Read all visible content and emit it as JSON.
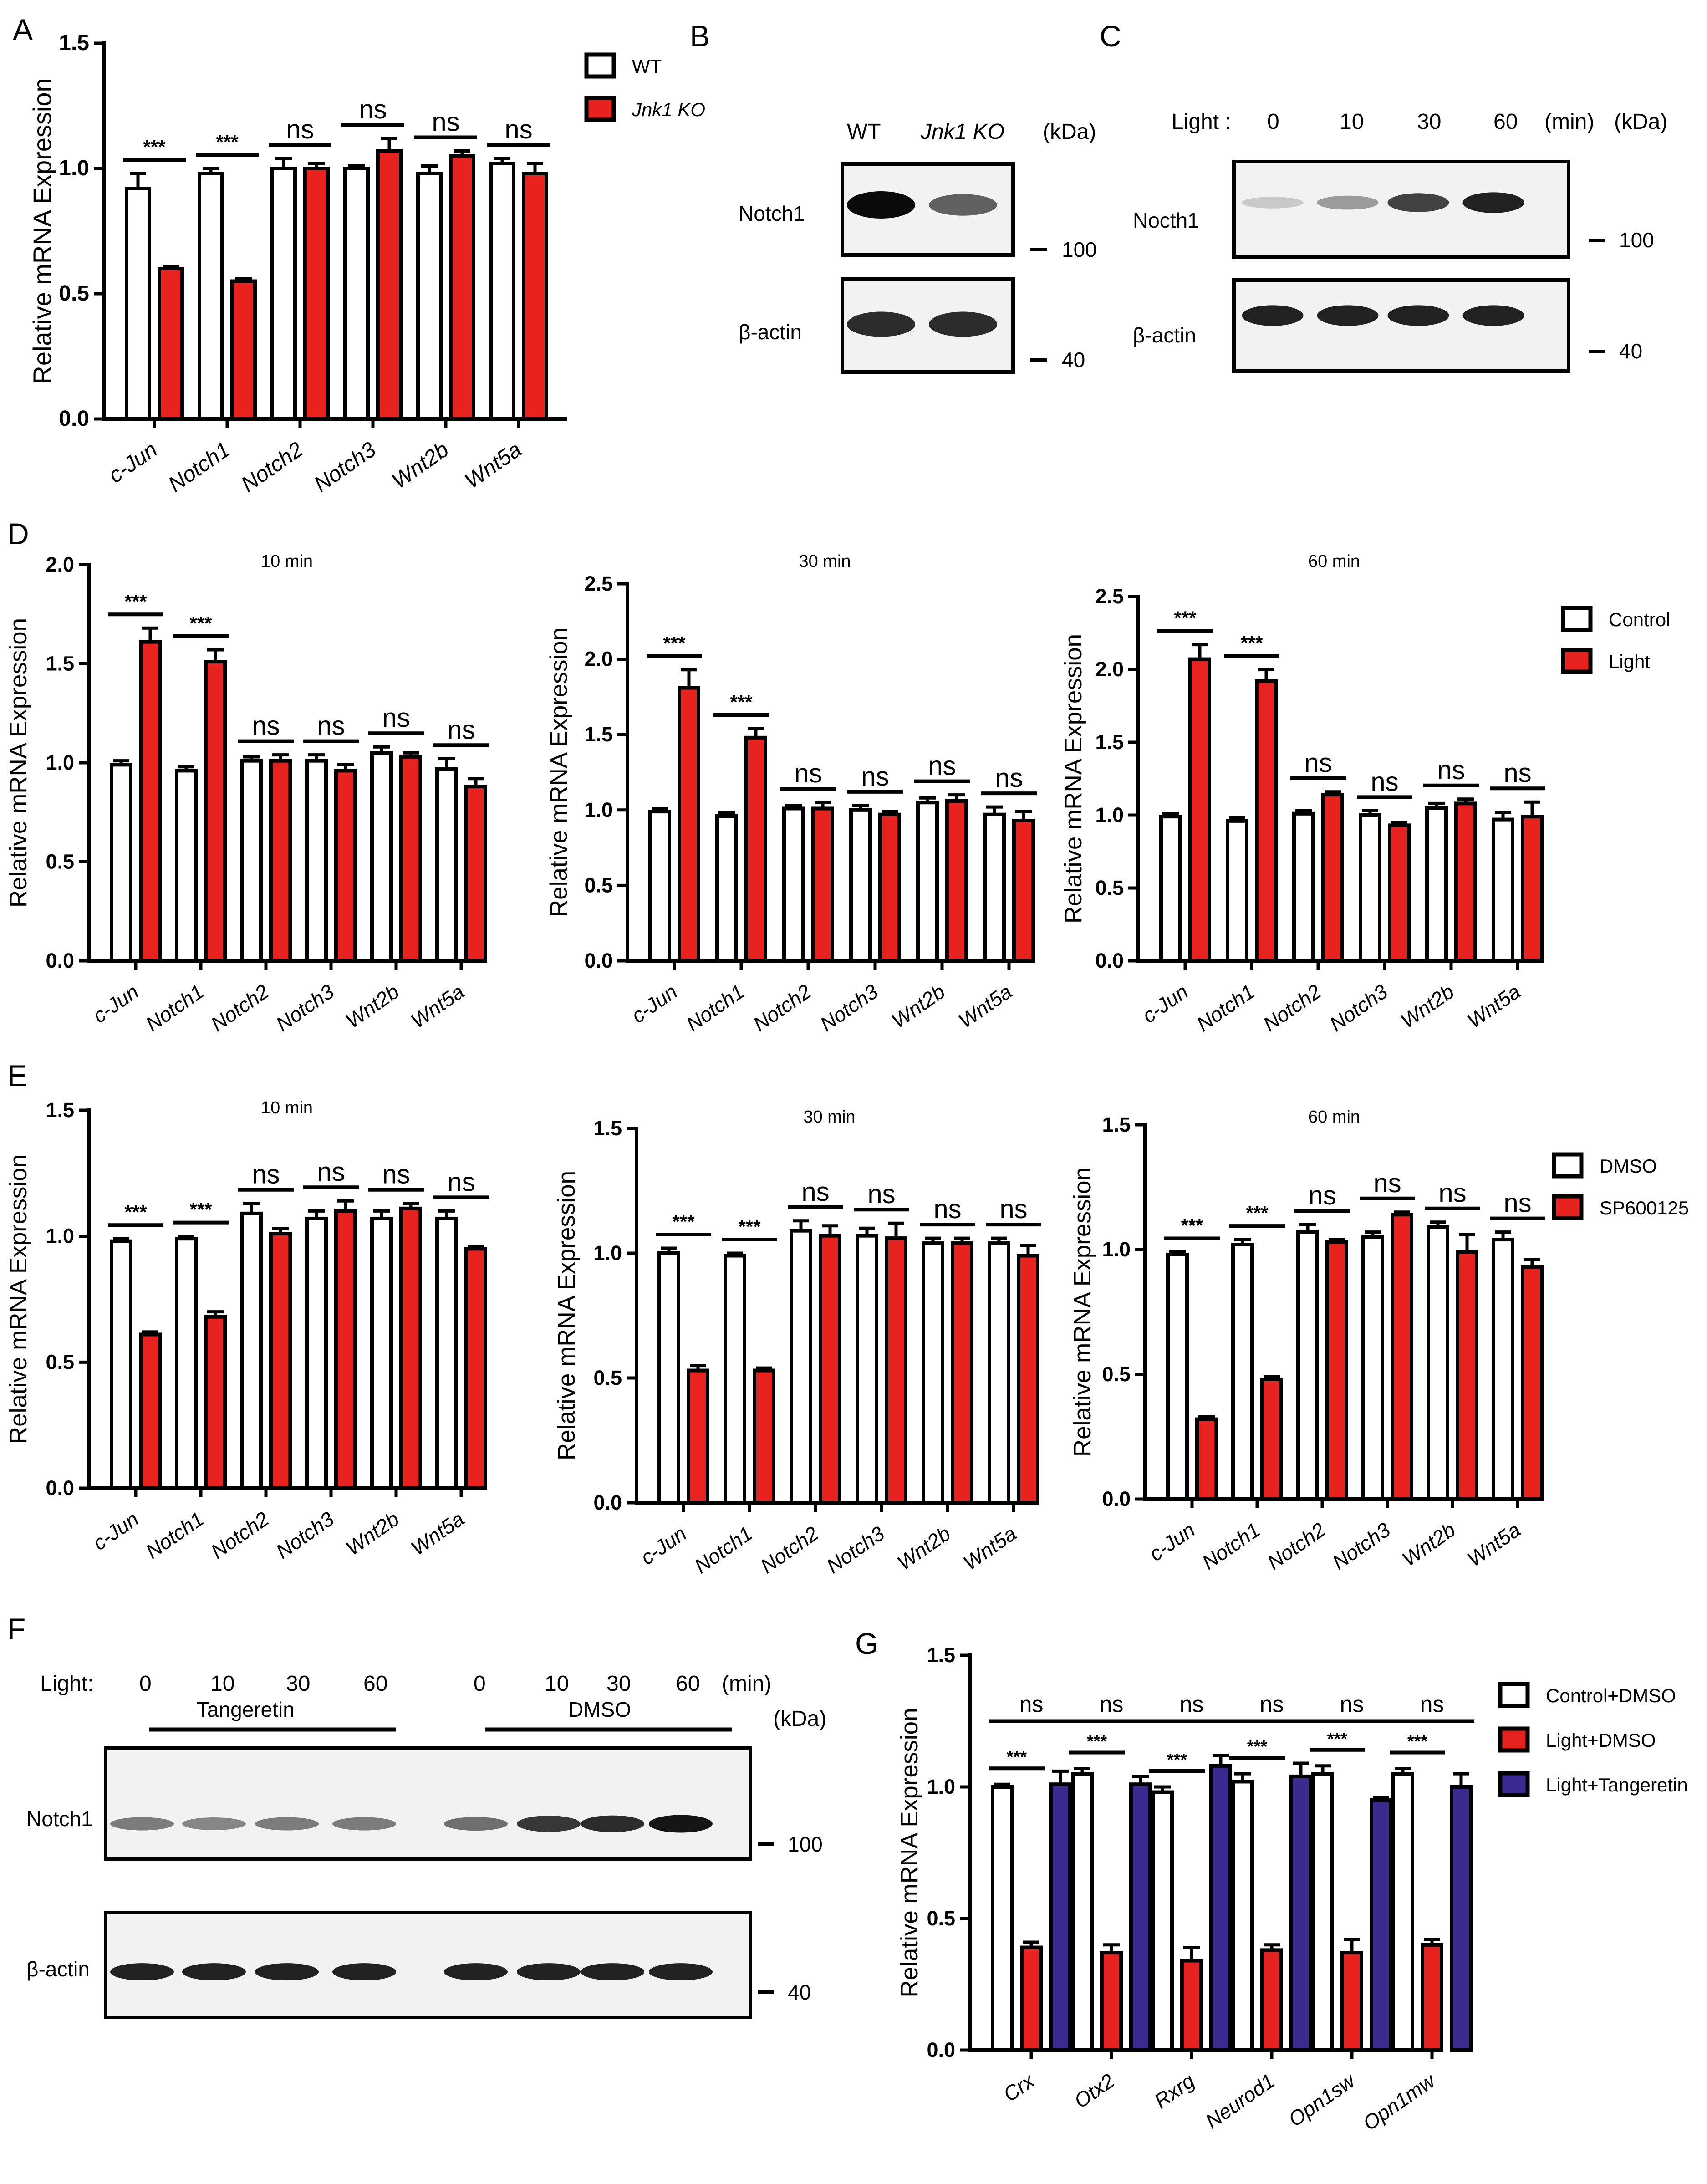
{
  "colors": {
    "control": "#ffffff",
    "treatment": "#e8231f",
    "tangeretin": "#3b2a8f",
    "axis": "#000000",
    "blot_bg": "#f2f2f2",
    "band": "#111111"
  },
  "panel_letters": [
    "A",
    "B",
    "C",
    "D",
    "E",
    "F",
    "G"
  ],
  "genes": [
    "c-Jun",
    "Notch1",
    "Notch2",
    "Notch3",
    "Wnt2b",
    "Wnt5a"
  ],
  "chart_data": [
    {
      "id": "A",
      "type": "bar",
      "title": "",
      "ylabel": "Relative mRNA Expression",
      "categories": [
        "c-Jun",
        "Notch1",
        "Notch2",
        "Notch3",
        "Wnt2b",
        "Wnt5a"
      ],
      "ylim": [
        0,
        1.5
      ],
      "yticks": [
        "0.0",
        "0.5",
        "1.0",
        "1.5"
      ],
      "legend": "top-right",
      "series": [
        {
          "name": "WT",
          "color": "#ffffff",
          "values": [
            0.92,
            0.98,
            1.0,
            1.0,
            0.98,
            1.02
          ],
          "errors": [
            0.06,
            0.02,
            0.04,
            0.01,
            0.03,
            0.02
          ]
        },
        {
          "name": "Jnk1 KO",
          "color": "#e8231f",
          "values": [
            0.6,
            0.55,
            1.0,
            1.07,
            1.05,
            0.98
          ],
          "errors": [
            0.01,
            0.01,
            0.02,
            0.05,
            0.02,
            0.04
          ]
        }
      ],
      "significance": [
        "***",
        "***",
        "ns",
        "ns",
        "ns",
        "ns"
      ]
    },
    {
      "id": "D1",
      "type": "bar",
      "title": "10 min",
      "ylabel": "Relative mRNA Expression",
      "categories": [
        "c-Jun",
        "Notch1",
        "Notch2",
        "Notch3",
        "Wnt2b",
        "Wnt5a"
      ],
      "ylim": [
        0,
        2.0
      ],
      "yticks": [
        "0.0",
        "0.5",
        "1.0",
        "1.5",
        "2.0"
      ],
      "series": [
        {
          "name": "Control",
          "color": "#ffffff",
          "values": [
            0.99,
            0.96,
            1.01,
            1.01,
            1.05,
            0.97
          ],
          "errors": [
            0.02,
            0.02,
            0.02,
            0.03,
            0.03,
            0.05
          ]
        },
        {
          "name": "Light",
          "color": "#e8231f",
          "values": [
            1.61,
            1.51,
            1.01,
            0.96,
            1.03,
            0.88
          ],
          "errors": [
            0.07,
            0.06,
            0.03,
            0.03,
            0.02,
            0.04
          ]
        }
      ],
      "significance": [
        "***",
        "***",
        "ns",
        "ns",
        "ns",
        "ns"
      ]
    },
    {
      "id": "D2",
      "type": "bar",
      "title": "30 min",
      "ylabel": "Relative mRNA Expression",
      "categories": [
        "c-Jun",
        "Notch1",
        "Notch2",
        "Notch3",
        "Wnt2b",
        "Wnt5a"
      ],
      "ylim": [
        0,
        2.5
      ],
      "yticks": [
        "0.0",
        "0.5",
        "1.0",
        "1.5",
        "2.0",
        "2.5"
      ],
      "series": [
        {
          "name": "Control",
          "color": "#ffffff",
          "values": [
            0.99,
            0.96,
            1.01,
            1.0,
            1.05,
            0.97
          ],
          "errors": [
            0.02,
            0.02,
            0.02,
            0.03,
            0.03,
            0.05
          ]
        },
        {
          "name": "Light",
          "color": "#e8231f",
          "values": [
            1.81,
            1.48,
            1.01,
            0.97,
            1.06,
            0.93
          ],
          "errors": [
            0.12,
            0.06,
            0.04,
            0.02,
            0.04,
            0.06
          ]
        }
      ],
      "significance": [
        "***",
        "***",
        "ns",
        "ns",
        "ns",
        "ns"
      ]
    },
    {
      "id": "D3",
      "type": "bar",
      "title": "60 min",
      "ylabel": "Relative mRNA Expression",
      "categories": [
        "c-Jun",
        "Notch1",
        "Notch2",
        "Notch3",
        "Wnt2b",
        "Wnt5a"
      ],
      "ylim": [
        0,
        2.5
      ],
      "yticks": [
        "0.0",
        "0.5",
        "1.0",
        "1.5",
        "2.0",
        "2.5"
      ],
      "legend": "top-right",
      "series": [
        {
          "name": "Control",
          "color": "#ffffff",
          "values": [
            0.99,
            0.96,
            1.01,
            1.0,
            1.05,
            0.97
          ],
          "errors": [
            0.02,
            0.02,
            0.02,
            0.03,
            0.03,
            0.05
          ]
        },
        {
          "name": "Light",
          "color": "#e8231f",
          "values": [
            2.07,
            1.92,
            1.14,
            0.93,
            1.08,
            0.99
          ],
          "errors": [
            0.1,
            0.08,
            0.02,
            0.02,
            0.03,
            0.1
          ]
        }
      ],
      "significance": [
        "***",
        "***",
        "ns",
        "ns",
        "ns",
        "ns"
      ]
    },
    {
      "id": "E1",
      "type": "bar",
      "title": "10 min",
      "ylabel": "Relative mRNA Expression",
      "categories": [
        "c-Jun",
        "Notch1",
        "Notch2",
        "Notch3",
        "Wnt2b",
        "Wnt5a"
      ],
      "ylim": [
        0,
        1.5
      ],
      "yticks": [
        "0.0",
        "0.5",
        "1.0",
        "1.5"
      ],
      "series": [
        {
          "name": "DMSO",
          "color": "#ffffff",
          "values": [
            0.98,
            0.99,
            1.09,
            1.07,
            1.07,
            1.07
          ],
          "errors": [
            0.01,
            0.01,
            0.04,
            0.03,
            0.03,
            0.03
          ]
        },
        {
          "name": "SP600125",
          "color": "#e8231f",
          "values": [
            0.61,
            0.68,
            1.01,
            1.1,
            1.11,
            0.95
          ],
          "errors": [
            0.01,
            0.02,
            0.02,
            0.04,
            0.02,
            0.01
          ]
        }
      ],
      "significance": [
        "***",
        "***",
        "ns",
        "ns",
        "ns",
        "ns"
      ]
    },
    {
      "id": "E2",
      "type": "bar",
      "title": "30 min",
      "ylabel": "Relative mRNA Expression",
      "categories": [
        "c-Jun",
        "Notch1",
        "Notch2",
        "Notch3",
        "Wnt2b",
        "Wnt5a"
      ],
      "ylim": [
        0,
        1.5
      ],
      "yticks": [
        "0.0",
        "0.5",
        "1.0",
        "1.5"
      ],
      "series": [
        {
          "name": "DMSO",
          "color": "#ffffff",
          "values": [
            1.0,
            0.99,
            1.09,
            1.07,
            1.04,
            1.04
          ],
          "errors": [
            0.02,
            0.01,
            0.04,
            0.03,
            0.02,
            0.02
          ]
        },
        {
          "name": "SP600125",
          "color": "#e8231f",
          "values": [
            0.53,
            0.53,
            1.07,
            1.06,
            1.04,
            0.99
          ],
          "errors": [
            0.02,
            0.01,
            0.04,
            0.06,
            0.02,
            0.04
          ]
        }
      ],
      "significance": [
        "***",
        "***",
        "ns",
        "ns",
        "ns",
        "ns"
      ]
    },
    {
      "id": "E3",
      "type": "bar",
      "title": "60 min",
      "ylabel": "Relative mRNA Expression",
      "categories": [
        "c-Jun",
        "Notch1",
        "Notch2",
        "Notch3",
        "Wnt2b",
        "Wnt5a"
      ],
      "ylim": [
        0,
        1.5
      ],
      "yticks": [
        "0.0",
        "0.5",
        "1.0",
        "1.5"
      ],
      "legend": "top-right",
      "series": [
        {
          "name": "DMSO",
          "color": "#ffffff",
          "values": [
            0.98,
            1.02,
            1.07,
            1.05,
            1.09,
            1.04
          ],
          "errors": [
            0.01,
            0.02,
            0.03,
            0.02,
            0.02,
            0.03
          ]
        },
        {
          "name": "SP600125",
          "color": "#e8231f",
          "values": [
            0.32,
            0.48,
            1.03,
            1.14,
            0.99,
            0.93
          ],
          "errors": [
            0.01,
            0.01,
            0.01,
            0.01,
            0.07,
            0.03
          ]
        }
      ],
      "significance": [
        "***",
        "***",
        "ns",
        "ns",
        "ns",
        "ns"
      ]
    },
    {
      "id": "G",
      "type": "bar",
      "title": "",
      "ylabel": "Relative mRNA Expression",
      "categories": [
        "Crx",
        "Otx2",
        "Rxrg",
        "Neurod1",
        "Opn1sw",
        "Opn1mw"
      ],
      "ylim": [
        0,
        1.5
      ],
      "yticks": [
        "0.0",
        "0.5",
        "1.0",
        "1.5"
      ],
      "legend": "top-right",
      "series": [
        {
          "name": "Control+DMSO",
          "color": "#ffffff",
          "values": [
            1.0,
            1.05,
            0.98,
            1.02,
            1.05,
            1.05
          ],
          "errors": [
            0.01,
            0.02,
            0.02,
            0.03,
            0.03,
            0.02
          ]
        },
        {
          "name": "Light+DMSO",
          "color": "#e8231f",
          "values": [
            0.39,
            0.37,
            0.34,
            0.38,
            0.37,
            0.4
          ],
          "errors": [
            0.02,
            0.03,
            0.05,
            0.02,
            0.05,
            0.02
          ]
        },
        {
          "name": "Light+Tangeretin",
          "color": "#3b2a8f",
          "values": [
            1.01,
            1.01,
            1.08,
            1.04,
            0.95,
            1.0
          ],
          "errors": [
            0.05,
            0.03,
            0.04,
            0.05,
            0.01,
            0.05
          ]
        }
      ],
      "significance_high": [
        "ns",
        "ns",
        "ns",
        "ns",
        "ns",
        "ns"
      ],
      "significance_low": [
        "***",
        "***",
        "***",
        "***",
        "***",
        "***"
      ]
    }
  ],
  "blots": {
    "B": {
      "headers": [
        "WT",
        "Jnk1 KO",
        "(kDa)"
      ],
      "rows": [
        {
          "label": "Notch1",
          "marker": "100",
          "intensities": [
            1.0,
            0.62
          ]
        },
        {
          "label": "β-actin",
          "marker": "40",
          "intensities": [
            0.85,
            0.85
          ]
        }
      ]
    },
    "C": {
      "light_label": "Light :",
      "times": [
        "0",
        "10",
        "30",
        "60"
      ],
      "units": [
        "(min)",
        "(kDa)"
      ],
      "rows": [
        {
          "label": "Nocth1",
          "marker": "100",
          "intensities": [
            0.15,
            0.35,
            0.75,
            0.9
          ]
        },
        {
          "label": "β-actin",
          "marker": "40",
          "intensities": [
            0.9,
            0.9,
            0.9,
            0.9
          ]
        }
      ]
    },
    "F": {
      "light_label": "Light:",
      "times": [
        "0",
        "10",
        "30",
        "60",
        "0",
        "10",
        "30",
        "60"
      ],
      "units": [
        "(min)",
        "(kDa)"
      ],
      "groups": [
        "Tangeretin",
        "DMSO"
      ],
      "rows": [
        {
          "label": "Notch1",
          "marker": "100",
          "intensities": [
            0.5,
            0.45,
            0.5,
            0.5,
            0.55,
            0.8,
            0.85,
            0.95
          ]
        },
        {
          "label": "β-actin",
          "marker": "40",
          "intensities": [
            0.9,
            0.9,
            0.9,
            0.9,
            0.9,
            0.9,
            0.9,
            0.9
          ]
        }
      ]
    }
  }
}
